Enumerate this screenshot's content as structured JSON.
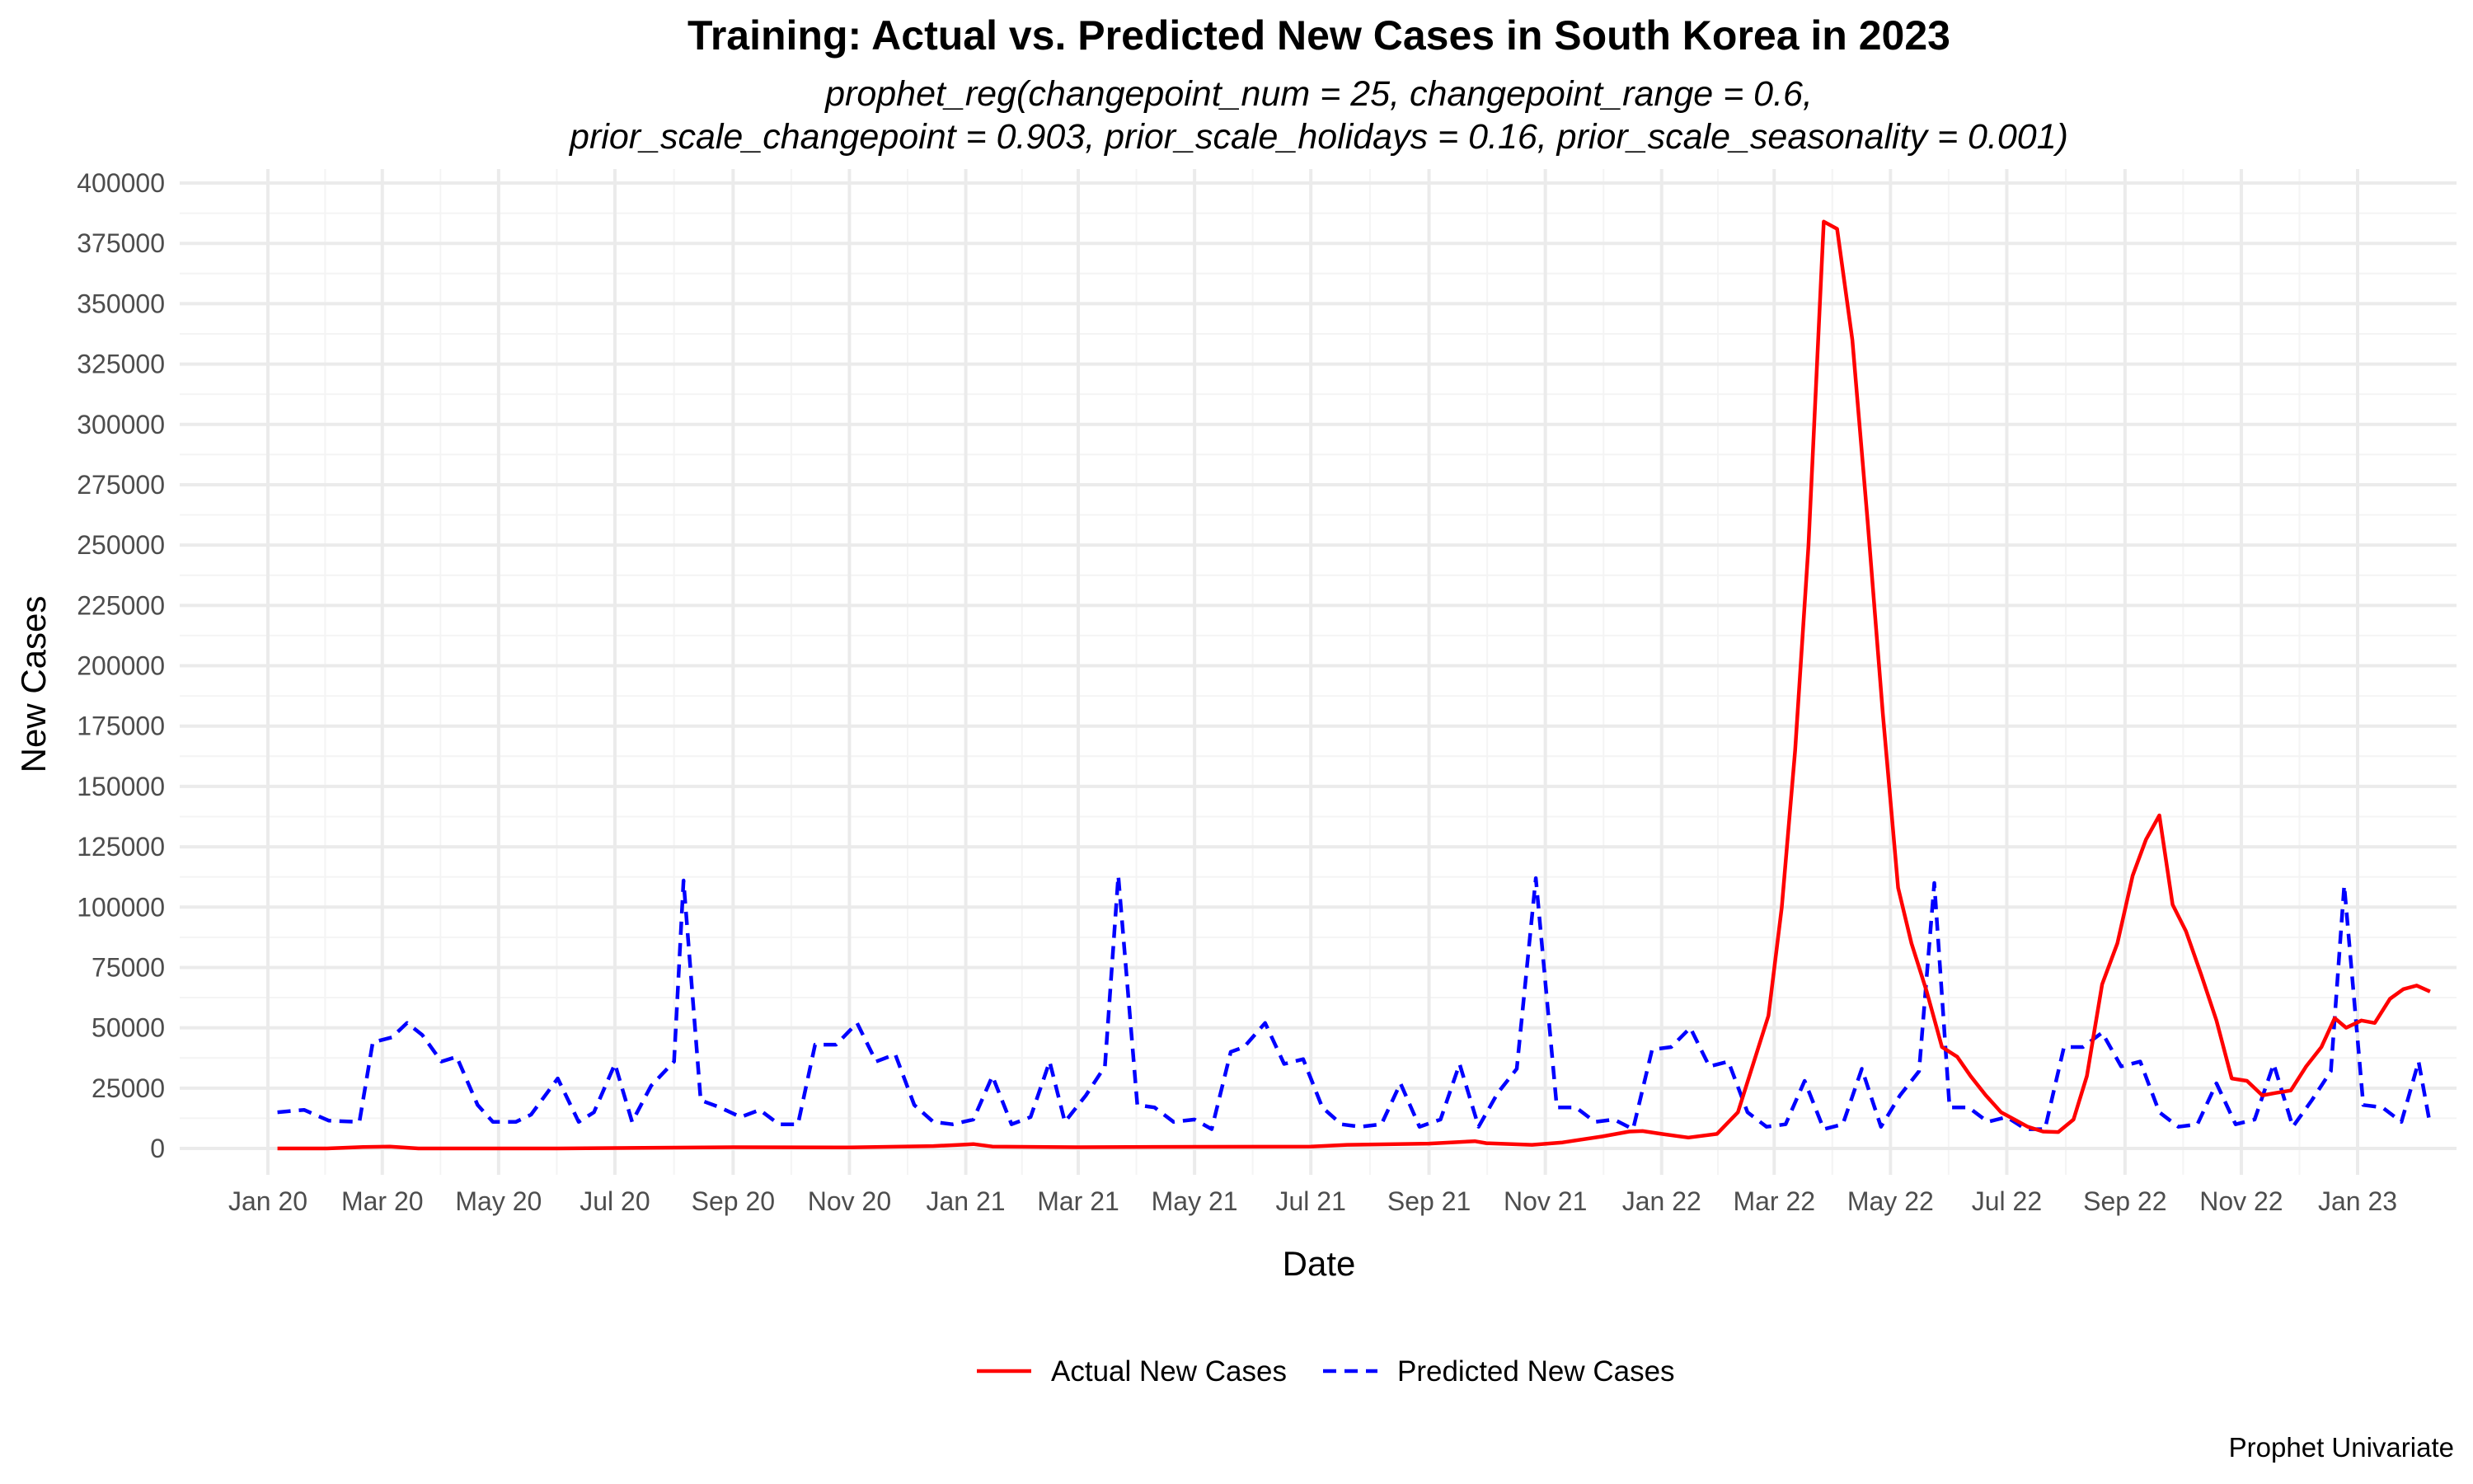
{
  "chart_data": {
    "type": "line",
    "title": "Training: Actual vs. Predicted New Cases in South Korea in 2023",
    "subtitle_lines": [
      "prophet_reg(changepoint_num = 25, changepoint_range = 0.6,",
      "prior_scale_changepoint = 0.903, prior_scale_holidays = 0.16, prior_scale_seasonality = 0.001)"
    ],
    "xlabel": "Date",
    "ylabel": "New Cases",
    "caption": "Prophet Univariate",
    "ylim": [
      0,
      400000
    ],
    "y_ticks": [
      0,
      25000,
      50000,
      75000,
      100000,
      125000,
      150000,
      175000,
      200000,
      225000,
      250000,
      275000,
      300000,
      325000,
      350000,
      375000,
      400000
    ],
    "x_ticks": [
      {
        "label": "Jan 20",
        "date": "2020-01-01"
      },
      {
        "label": "Mar 20",
        "date": "2020-03-01"
      },
      {
        "label": "May 20",
        "date": "2020-05-01"
      },
      {
        "label": "Jul 20",
        "date": "2020-07-01"
      },
      {
        "label": "Sep 20",
        "date": "2020-09-01"
      },
      {
        "label": "Nov 20",
        "date": "2020-11-01"
      },
      {
        "label": "Jan 21",
        "date": "2021-01-01"
      },
      {
        "label": "Mar 21",
        "date": "2021-03-01"
      },
      {
        "label": "May 21",
        "date": "2021-05-01"
      },
      {
        "label": "Jul 21",
        "date": "2021-07-01"
      },
      {
        "label": "Sep 21",
        "date": "2021-09-01"
      },
      {
        "label": "Nov 21",
        "date": "2021-11-01"
      },
      {
        "label": "Jan 22",
        "date": "2022-01-01"
      },
      {
        "label": "Mar 22",
        "date": "2022-03-01"
      },
      {
        "label": "May 22",
        "date": "2022-05-01"
      },
      {
        "label": "Jul 22",
        "date": "2022-07-01"
      },
      {
        "label": "Sep 22",
        "date": "2022-09-01"
      },
      {
        "label": "Nov 22",
        "date": "2022-11-01"
      },
      {
        "label": "Jan 23",
        "date": "2023-01-01"
      }
    ],
    "legend_position": "bottom",
    "grid": true,
    "series": [
      {
        "name": "Actual New Cases",
        "color": "#ff0000",
        "dash": "solid",
        "points": [
          [
            "2020-01-06",
            0
          ],
          [
            "2020-02-01",
            0
          ],
          [
            "2020-02-20",
            600
          ],
          [
            "2020-03-05",
            800
          ],
          [
            "2020-03-20",
            0
          ],
          [
            "2020-06-01",
            0
          ],
          [
            "2020-09-01",
            500
          ],
          [
            "2020-11-01",
            400
          ],
          [
            "2020-12-15",
            1000
          ],
          [
            "2021-01-01",
            1600
          ],
          [
            "2021-01-05",
            1800
          ],
          [
            "2021-01-15",
            800
          ],
          [
            "2021-03-01",
            500
          ],
          [
            "2021-05-01",
            700
          ],
          [
            "2021-07-01",
            800
          ],
          [
            "2021-07-20",
            1500
          ],
          [
            "2021-09-01",
            2000
          ],
          [
            "2021-09-25",
            3000
          ],
          [
            "2021-10-01",
            2200
          ],
          [
            "2021-10-25",
            1500
          ],
          [
            "2021-11-10",
            2500
          ],
          [
            "2021-12-01",
            5000
          ],
          [
            "2021-12-15",
            7000
          ],
          [
            "2021-12-22",
            7200
          ],
          [
            "2022-01-01",
            6000
          ],
          [
            "2022-01-15",
            4500
          ],
          [
            "2022-01-30",
            6000
          ],
          [
            "2022-02-10",
            15000
          ],
          [
            "2022-02-20",
            40000
          ],
          [
            "2022-02-26",
            55000
          ],
          [
            "2022-03-05",
            100000
          ],
          [
            "2022-03-12",
            165000
          ],
          [
            "2022-03-19",
            250000
          ],
          [
            "2022-03-27",
            384000
          ],
          [
            "2022-04-03",
            381000
          ],
          [
            "2022-04-11",
            335000
          ],
          [
            "2022-04-19",
            260000
          ],
          [
            "2022-04-27",
            180000
          ],
          [
            "2022-05-05",
            108000
          ],
          [
            "2022-05-12",
            85000
          ],
          [
            "2022-05-20",
            65000
          ],
          [
            "2022-05-28",
            42000
          ],
          [
            "2022-06-05",
            38000
          ],
          [
            "2022-06-12",
            30000
          ],
          [
            "2022-06-20",
            22000
          ],
          [
            "2022-06-28",
            15000
          ],
          [
            "2022-07-05",
            12000
          ],
          [
            "2022-07-12",
            9000
          ],
          [
            "2022-07-20",
            7000
          ],
          [
            "2022-07-28",
            6800
          ],
          [
            "2022-08-05",
            12000
          ],
          [
            "2022-08-12",
            30000
          ],
          [
            "2022-08-20",
            68000
          ],
          [
            "2022-08-28",
            85000
          ],
          [
            "2022-09-05",
            113000
          ],
          [
            "2022-09-12",
            128000
          ],
          [
            "2022-09-19",
            138000
          ],
          [
            "2022-09-26",
            101000
          ],
          [
            "2022-10-03",
            90000
          ],
          [
            "2022-10-11",
            72000
          ],
          [
            "2022-10-19",
            53000
          ],
          [
            "2022-10-27",
            29000
          ],
          [
            "2022-11-04",
            28000
          ],
          [
            "2022-11-12",
            22000
          ],
          [
            "2022-11-19",
            23000
          ],
          [
            "2022-11-27",
            24000
          ],
          [
            "2022-12-05",
            34000
          ],
          [
            "2022-12-13",
            42000
          ],
          [
            "2022-12-20",
            54000
          ],
          [
            "2022-12-26",
            50000
          ],
          [
            "2023-01-03",
            53000
          ],
          [
            "2023-01-10",
            52000
          ],
          [
            "2023-01-18",
            62000
          ],
          [
            "2023-01-25",
            66000
          ],
          [
            "2023-02-01",
            67500
          ],
          [
            "2023-02-08",
            65000
          ]
        ]
      },
      {
        "name": "Predicted New Cases",
        "color": "#0000ff",
        "dash": "dashed",
        "points": [
          [
            "2020-01-06",
            15000
          ],
          [
            "2020-01-20",
            16000
          ],
          [
            "2020-02-02",
            11500
          ],
          [
            "2020-02-18",
            11000
          ],
          [
            "2020-02-25",
            44000
          ],
          [
            "2020-03-06",
            46000
          ],
          [
            "2020-03-14",
            52000
          ],
          [
            "2020-03-22",
            47000
          ],
          [
            "2020-04-01",
            36000
          ],
          [
            "2020-04-09",
            38000
          ],
          [
            "2020-04-20",
            18000
          ],
          [
            "2020-04-28",
            11000
          ],
          [
            "2020-05-10",
            11000
          ],
          [
            "2020-05-18",
            14000
          ],
          [
            "2020-06-01",
            29000
          ],
          [
            "2020-06-12",
            11000
          ],
          [
            "2020-06-20",
            15000
          ],
          [
            "2020-07-01",
            35000
          ],
          [
            "2020-07-10",
            11000
          ],
          [
            "2020-07-20",
            26000
          ],
          [
            "2020-08-01",
            36000
          ],
          [
            "2020-08-06",
            111000
          ],
          [
            "2020-08-15",
            20000
          ],
          [
            "2020-08-25",
            17000
          ],
          [
            "2020-09-05",
            13000
          ],
          [
            "2020-09-15",
            16000
          ],
          [
            "2020-09-25",
            10000
          ],
          [
            "2020-10-05",
            10000
          ],
          [
            "2020-10-14",
            43000
          ],
          [
            "2020-10-25",
            43000
          ],
          [
            "2020-11-05",
            52000
          ],
          [
            "2020-11-15",
            36000
          ],
          [
            "2020-11-25",
            39000
          ],
          [
            "2020-12-05",
            18000
          ],
          [
            "2020-12-15",
            11000
          ],
          [
            "2020-12-25",
            10000
          ],
          [
            "2021-01-05",
            12000
          ],
          [
            "2021-01-15",
            30000
          ],
          [
            "2021-01-25",
            10000
          ],
          [
            "2021-02-04",
            13000
          ],
          [
            "2021-02-14",
            36000
          ],
          [
            "2021-02-22",
            11000
          ],
          [
            "2021-03-05",
            22000
          ],
          [
            "2021-03-15",
            34000
          ],
          [
            "2021-03-22",
            113000
          ],
          [
            "2021-04-01",
            18000
          ],
          [
            "2021-04-10",
            17000
          ],
          [
            "2021-04-20",
            11000
          ],
          [
            "2021-05-01",
            12000
          ],
          [
            "2021-05-10",
            8000
          ],
          [
            "2021-05-20",
            40000
          ],
          [
            "2021-05-27",
            42000
          ],
          [
            "2021-06-07",
            52000
          ],
          [
            "2021-06-17",
            35000
          ],
          [
            "2021-06-27",
            37000
          ],
          [
            "2021-07-07",
            17000
          ],
          [
            "2021-07-17",
            10000
          ],
          [
            "2021-07-27",
            9000
          ],
          [
            "2021-08-07",
            10000
          ],
          [
            "2021-08-17",
            27000
          ],
          [
            "2021-08-27",
            9000
          ],
          [
            "2021-09-07",
            12000
          ],
          [
            "2021-09-17",
            35000
          ],
          [
            "2021-09-27",
            9000
          ],
          [
            "2021-10-07",
            23000
          ],
          [
            "2021-10-17",
            33000
          ],
          [
            "2021-10-27",
            112000
          ],
          [
            "2021-11-07",
            17000
          ],
          [
            "2021-11-17",
            17000
          ],
          [
            "2021-11-27",
            11000
          ],
          [
            "2021-12-07",
            12000
          ],
          [
            "2021-12-17",
            8000
          ],
          [
            "2021-12-27",
            41000
          ],
          [
            "2022-01-06",
            42000
          ],
          [
            "2022-01-16",
            50000
          ],
          [
            "2022-01-26",
            34000
          ],
          [
            "2022-02-05",
            36000
          ],
          [
            "2022-02-15",
            15000
          ],
          [
            "2022-02-25",
            9000
          ],
          [
            "2022-03-07",
            10000
          ],
          [
            "2022-03-17",
            28000
          ],
          [
            "2022-03-27",
            8000
          ],
          [
            "2022-04-06",
            10000
          ],
          [
            "2022-04-16",
            33000
          ],
          [
            "2022-04-26",
            9000
          ],
          [
            "2022-05-06",
            22000
          ],
          [
            "2022-05-16",
            32000
          ],
          [
            "2022-05-24",
            110000
          ],
          [
            "2022-06-01",
            17000
          ],
          [
            "2022-06-11",
            17000
          ],
          [
            "2022-06-21",
            11000
          ],
          [
            "2022-07-01",
            13000
          ],
          [
            "2022-07-11",
            8000
          ],
          [
            "2022-07-21",
            8000
          ],
          [
            "2022-07-31",
            42000
          ],
          [
            "2022-08-10",
            42000
          ],
          [
            "2022-08-20",
            48000
          ],
          [
            "2022-08-30",
            34000
          ],
          [
            "2022-09-09",
            36000
          ],
          [
            "2022-09-19",
            15000
          ],
          [
            "2022-09-29",
            9000
          ],
          [
            "2022-10-09",
            10000
          ],
          [
            "2022-10-19",
            27000
          ],
          [
            "2022-10-29",
            10000
          ],
          [
            "2022-11-08",
            12000
          ],
          [
            "2022-11-18",
            35000
          ],
          [
            "2022-11-28",
            9000
          ],
          [
            "2022-12-08",
            20000
          ],
          [
            "2022-12-18",
            32000
          ],
          [
            "2022-12-25",
            109000
          ],
          [
            "2023-01-04",
            18000
          ],
          [
            "2023-01-14",
            17000
          ],
          [
            "2023-01-24",
            11000
          ],
          [
            "2023-02-02",
            36000
          ],
          [
            "2023-02-08",
            10000
          ]
        ]
      }
    ]
  }
}
